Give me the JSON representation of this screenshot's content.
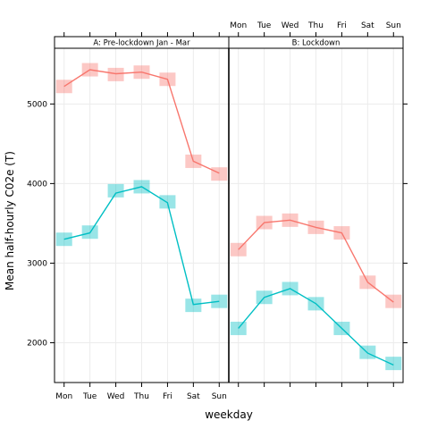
{
  "chart_data": {
    "type": "line",
    "xlabel": "weekday",
    "ylabel": "Mean half-hourly C02e (T)",
    "ylim": [
      1500,
      5700
    ],
    "yticks": [
      2000,
      3000,
      4000,
      5000
    ],
    "categories": [
      "Mon",
      "Tue",
      "Wed",
      "Thu",
      "Fri",
      "Sat",
      "Sun"
    ],
    "grid": true,
    "colors": {
      "series1": "#F8766D",
      "series2": "#00BFC4"
    },
    "panels": [
      {
        "label": "A: Pre-lockdown Jan - Mar",
        "series": [
          {
            "values": [
              5220,
              5430,
              5380,
              5400,
              5310,
              4280,
              4130
            ]
          },
          {
            "values": [
              3300,
              3380,
              3880,
              3960,
              3760,
              2480,
              2520
            ]
          }
        ],
        "bands": [
          {
            "values": [
              5220,
              5430,
              5370,
              5400,
              5310,
              4280,
              4120
            ]
          },
          {
            "values": [
              3300,
              3390,
              3910,
              3960,
              3770,
              2470,
              2520
            ]
          }
        ]
      },
      {
        "label": "B: Lockdown",
        "series": [
          {
            "values": [
              3170,
              3510,
              3540,
              3450,
              3380,
              2760,
              2510
            ]
          },
          {
            "values": [
              2180,
              2570,
              2680,
              2490,
              2180,
              1870,
              1720
            ]
          }
        ],
        "bands": [
          {
            "values": [
              3170,
              3510,
              3540,
              3450,
              3380,
              2760,
              2520
            ]
          },
          {
            "values": [
              2180,
              2570,
              2680,
              2490,
              2180,
              1880,
              1740
            ]
          }
        ]
      }
    ]
  }
}
